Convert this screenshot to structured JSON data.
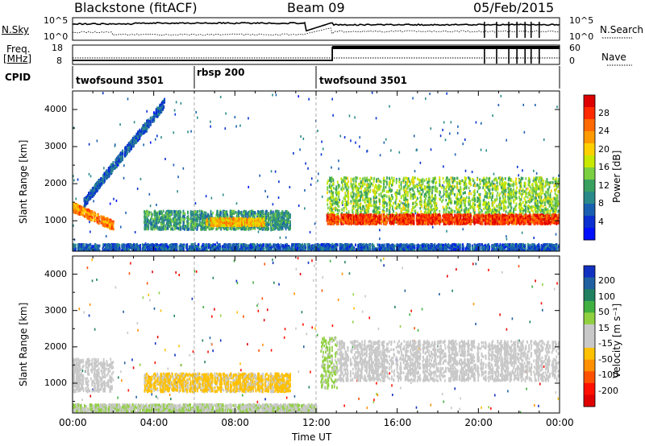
{
  "header": {
    "radar": "Blackstone (fitACF)",
    "beam": "Beam 09",
    "date": "05/Feb/2015"
  },
  "top_panels": {
    "nsky_label": "N.Sky",
    "nsearch_label": "N.Search",
    "freq_label_line1": "Freq.",
    "freq_label_line2": "[MHz]",
    "nave_label": "Nave",
    "cpid_label": "CPID",
    "noise_ticks_left": [
      "10^5",
      "10^0"
    ],
    "noise_ticks_right": [
      "10^5",
      "10^0"
    ],
    "freq_ticks": [
      "18",
      "8"
    ],
    "nave_ticks": [
      "60",
      "0"
    ]
  },
  "cpid_segments": [
    {
      "label": "twofsound 3501",
      "start_hour": 0,
      "end_hour": 6
    },
    {
      "label": "rbsp 200",
      "start_hour": 6,
      "end_hour": 12
    },
    {
      "label": "twofsound 3501",
      "start_hour": 12,
      "end_hour": 24
    }
  ],
  "x_axis": {
    "label": "Time UT",
    "ticks": [
      "00:00",
      "04:00",
      "08:00",
      "12:00",
      "16:00",
      "20:00",
      "00:00"
    ]
  },
  "power_colorbar": {
    "label": "Power [dB]",
    "ticks": [
      "28",
      "24",
      "20",
      "16",
      "12",
      "8",
      "4"
    ],
    "colors": [
      "#dd0000",
      "#ff2a00",
      "#ff6a00",
      "#ff9a00",
      "#ffd000",
      "#c8e800",
      "#7ad040",
      "#3aa060",
      "#2a8a8a",
      "#1a60b0",
      "#0a30d0",
      "#0010ff"
    ]
  },
  "velocity_colorbar": {
    "label": "Velocity [m s⁻¹]",
    "ticks": [
      "200",
      "100",
      "50",
      "15",
      "-15",
      "-50",
      "-100",
      "-200"
    ],
    "colors": [
      "#1030c0",
      "#2060a0",
      "#208060",
      "#40b040",
      "#90d040",
      "#c8c8c8",
      "#c8c8c8",
      "#ffc000",
      "#ff9000",
      "#ff5000",
      "#ff1000",
      "#e00000"
    ]
  },
  "chart_data": [
    {
      "type": "heatmap",
      "title": "Power",
      "xlabel": "Time UT",
      "ylabel": "Slant Range [km]",
      "xlim": [
        0,
        24
      ],
      "ylim": [
        180,
        4500
      ],
      "yticks": [
        1000,
        2000,
        3000,
        4000
      ],
      "zlabel": "Power [dB]",
      "zlim": [
        0,
        30
      ],
      "features": [
        {
          "name": "near-range echo band",
          "x_hours": [
            0,
            24
          ],
          "range_km": [
            180,
            400
          ],
          "power_db": 6
        },
        {
          "name": "morning descending band",
          "x_hours": [
            0,
            2.0
          ],
          "range_km_start": 1400,
          "range_km_end": 900,
          "power_db": 22
        },
        {
          "name": "rising streaks",
          "x_hours": [
            0.5,
            4.5
          ],
          "range_km_start": 1500,
          "range_km_end": 4200,
          "power_db": 6
        },
        {
          "name": "daytime band",
          "x_hours": [
            3.5,
            10.7
          ],
          "range_km": [
            800,
            1300
          ],
          "power_db": 10
        },
        {
          "name": "daytime strong core",
          "x_hours": [
            6.5,
            9.5
          ],
          "range_km": [
            900,
            1100
          ],
          "power_db": 20
        },
        {
          "name": "afternoon dense layer",
          "x_hours": [
            12.5,
            24
          ],
          "range_km": [
            1000,
            2200
          ],
          "power_db": 14
        },
        {
          "name": "afternoon strong base",
          "x_hours": [
            12.5,
            24
          ],
          "range_km": [
            950,
            1200
          ],
          "power_db": 26
        }
      ]
    },
    {
      "type": "heatmap",
      "title": "Velocity",
      "xlabel": "Time UT",
      "ylabel": "Slant Range [km]",
      "xlim": [
        0,
        24
      ],
      "ylim": [
        180,
        4500
      ],
      "yticks": [
        1000,
        2000,
        3000,
        4000
      ],
      "zlabel": "Velocity [m s-1]",
      "zlim": [
        -200,
        200
      ],
      "features": [
        {
          "name": "near-range ground scatter",
          "x_hours": [
            0,
            12
          ],
          "range_km": [
            180,
            450
          ],
          "velocity": 30
        },
        {
          "name": "morning ground scatter",
          "x_hours": [
            0,
            2.0
          ],
          "range_km": [
            800,
            1700
          ],
          "velocity": 0
        },
        {
          "name": "daytime band",
          "x_hours": [
            3.5,
            10.7
          ],
          "range_km": [
            800,
            1300
          ],
          "velocity": -40
        },
        {
          "name": "post-noon feature",
          "x_hours": [
            12.2,
            13.0
          ],
          "range_km": [
            900,
            2300
          ],
          "velocity": 40
        },
        {
          "name": "afternoon ground scatter",
          "x_hours": [
            13,
            24
          ],
          "range_km": [
            1100,
            2200
          ],
          "velocity": 0
        }
      ]
    }
  ]
}
